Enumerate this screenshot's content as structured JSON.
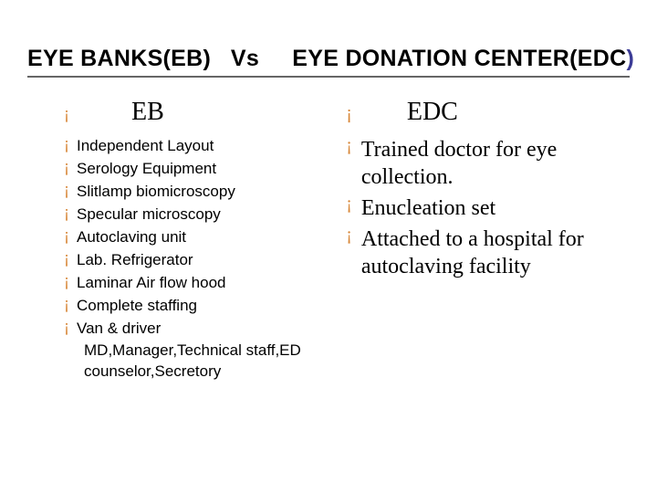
{
  "title": {
    "full_pre": "EYE BANKS(EB)   Vs     EYE DONATION CENTER(EDC",
    "paren_close": ")"
  },
  "left": {
    "header": "EB",
    "items": [
      "Independent Layout",
      "Serology Equipment",
      "Slitlamp biomicroscopy",
      "Specular microscopy",
      "Autoclaving unit",
      " Lab. Refrigerator",
      "Laminar Air flow hood",
      "Complete staffing",
      "Van & driver"
    ],
    "note": "MD,Manager,Technical staff,ED counselor,Secretory"
  },
  "right": {
    "header": "EDC",
    "items": [
      "Trained doctor for eye collection.",
      "Enucleation set",
      "Attached to a hospital for autoclaving facility"
    ]
  },
  "colors": {
    "bullet": "#d8883a",
    "rule": "#666666",
    "paren": "#3b3b96",
    "text": "#000000",
    "bg": "#ffffff"
  }
}
